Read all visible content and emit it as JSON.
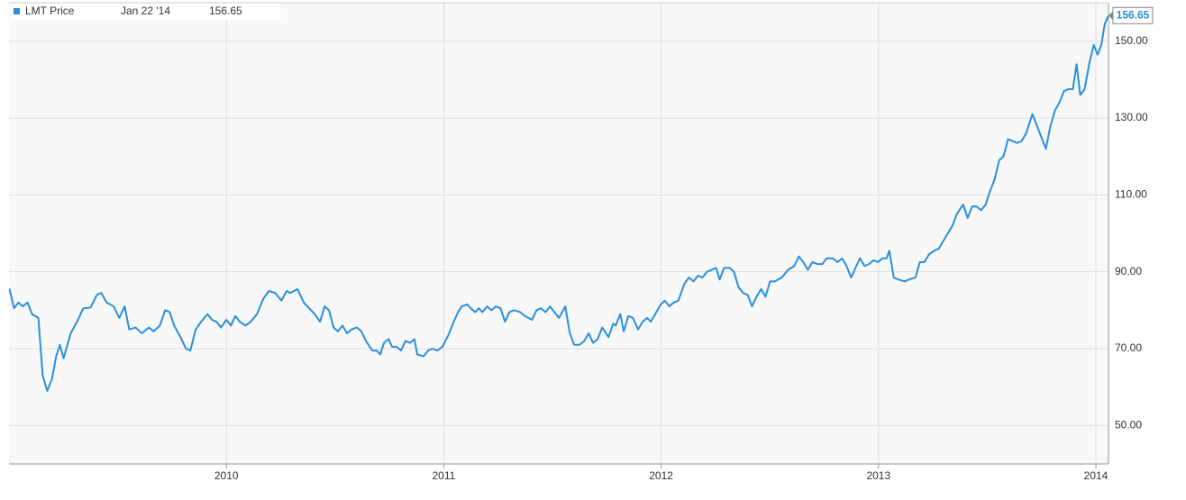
{
  "chart_data": {
    "type": "line",
    "legend_date": "Jan 22 '14",
    "x": [
      2009.002,
      2009.023,
      2009.043,
      2009.064,
      2009.085,
      2009.106,
      2009.135,
      2009.155,
      2009.176,
      2009.197,
      2009.217,
      2009.234,
      2009.251,
      2009.284,
      2009.313,
      2009.342,
      2009.375,
      2009.404,
      2009.424,
      2009.449,
      2009.482,
      2009.507,
      2009.532,
      2009.553,
      2009.582,
      2009.611,
      2009.644,
      2009.665,
      2009.694,
      2009.718,
      2009.739,
      2009.76,
      2009.789,
      2009.814,
      2009.834,
      2009.859,
      2009.884,
      2009.913,
      2009.934,
      2009.954,
      2009.975,
      2010.0,
      2010.021,
      2010.041,
      2010.062,
      2010.087,
      2010.112,
      2010.141,
      2010.17,
      2010.195,
      2010.224,
      2010.253,
      2010.277,
      2010.294,
      2010.327,
      2010.356,
      2010.381,
      2010.406,
      2010.431,
      2010.452,
      2010.472,
      2010.493,
      2010.513,
      2010.534,
      2010.555,
      2010.576,
      2010.6,
      2010.621,
      2010.642,
      2010.671,
      2010.692,
      2010.708,
      2010.725,
      2010.746,
      2010.762,
      2010.783,
      2010.803,
      2010.824,
      2010.845,
      2010.865,
      2010.878,
      2010.907,
      2010.928,
      2010.948,
      2010.969,
      2010.994,
      2011.021,
      2011.046,
      2011.066,
      2011.083,
      2011.108,
      2011.124,
      2011.145,
      2011.161,
      2011.178,
      2011.199,
      2011.219,
      2011.24,
      2011.261,
      2011.282,
      2011.302,
      2011.323,
      2011.352,
      2011.373,
      2011.406,
      2011.427,
      2011.447,
      2011.468,
      2011.489,
      2011.509,
      2011.53,
      2011.559,
      2011.58,
      2011.6,
      2011.625,
      2011.646,
      2011.667,
      2011.687,
      2011.708,
      2011.729,
      2011.758,
      2011.779,
      2011.791,
      2011.812,
      2011.828,
      2011.849,
      2011.87,
      2011.894,
      2011.915,
      2011.936,
      2011.952,
      2011.973,
      2011.998,
      2012.017,
      2012.037,
      2012.058,
      2012.079,
      2012.108,
      2012.128,
      2012.149,
      2012.17,
      2012.19,
      2012.211,
      2012.232,
      2012.253,
      2012.269,
      2012.29,
      2012.315,
      2012.335,
      2012.356,
      2012.377,
      2012.398,
      2012.418,
      2012.439,
      2012.46,
      2012.48,
      2012.501,
      2012.522,
      2012.555,
      2012.584,
      2012.613,
      2012.633,
      2012.654,
      2012.675,
      2012.696,
      2012.72,
      2012.741,
      2012.762,
      2012.791,
      2012.811,
      2012.832,
      2012.853,
      2012.874,
      2012.894,
      2012.915,
      2012.936,
      2012.956,
      2012.977,
      2012.998,
      2013.017,
      2013.037,
      2013.05,
      2013.07,
      2013.091,
      2013.12,
      2013.141,
      2013.17,
      2013.19,
      2013.211,
      2013.232,
      2013.257,
      2013.277,
      2013.298,
      2013.319,
      2013.34,
      2013.36,
      2013.389,
      2013.41,
      2013.431,
      2013.451,
      2013.472,
      2013.493,
      2013.513,
      2013.534,
      2013.555,
      2013.575,
      2013.596,
      2013.617,
      2013.638,
      2013.658,
      2013.679,
      2013.708,
      2013.729,
      2013.749,
      2013.77,
      2013.791,
      2013.812,
      2013.832,
      2013.853,
      2013.874,
      2013.894,
      2013.911,
      2013.928,
      2013.948,
      2013.969,
      2013.99,
      2014.008,
      2014.025,
      2014.041,
      2014.058
    ],
    "series": [
      {
        "name": "LMT Price",
        "color": "#2b8fdc",
        "values": [
          85.6,
          80.5,
          82,
          81,
          82,
          79,
          78,
          63,
          59,
          62,
          68,
          71,
          67.5,
          74,
          77,
          80.5,
          80.7,
          84,
          84.5,
          82,
          81,
          78,
          81,
          75,
          75.5,
          74,
          75.5,
          74.5,
          76,
          80,
          79.5,
          76,
          73,
          70,
          69.5,
          75,
          77,
          79,
          77.5,
          77,
          75.5,
          77.5,
          76,
          78.5,
          77,
          76,
          77,
          79,
          83,
          85,
          84.5,
          82.5,
          85,
          84.5,
          85.5,
          82,
          80.5,
          79,
          77,
          81,
          80,
          75.5,
          74.5,
          76,
          74,
          75,
          75.5,
          74.5,
          72,
          69.5,
          69.5,
          68.5,
          71.5,
          72.5,
          70.5,
          70.5,
          69.5,
          72,
          71.5,
          72.5,
          68.5,
          68,
          69.5,
          70,
          69.5,
          70.5,
          73.5,
          77,
          79.5,
          81,
          81.5,
          80.5,
          79.5,
          80.5,
          79.5,
          81,
          80,
          81,
          80.5,
          77,
          79.5,
          80,
          79.5,
          78.5,
          77.5,
          80,
          80.5,
          79.5,
          81,
          79.5,
          78,
          81,
          74,
          71,
          71,
          72,
          74,
          71.5,
          72.5,
          75.5,
          73,
          76.5,
          76,
          79,
          74.5,
          78.5,
          78,
          75,
          77,
          78,
          77,
          79,
          81.5,
          82.5,
          81,
          82,
          82.5,
          87,
          88.5,
          87.5,
          89,
          88.5,
          90,
          90.5,
          91,
          88,
          91,
          91,
          90,
          86,
          84.5,
          84,
          81,
          83.5,
          85.5,
          83.5,
          87.5,
          87.5,
          88.5,
          90.5,
          91.5,
          94,
          92.5,
          90.5,
          92.5,
          92,
          92,
          93.5,
          93.5,
          92.5,
          93.5,
          91.5,
          88.5,
          91,
          93.5,
          91.5,
          92,
          93,
          92.5,
          93.5,
          93.5,
          95.5,
          88.5,
          88,
          87.5,
          88,
          88.5,
          92.5,
          92.5,
          94.5,
          95.5,
          96,
          98,
          100,
          102,
          105,
          107.5,
          104,
          107,
          107,
          106,
          107.5,
          111,
          114,
          119,
          120,
          124.5,
          124,
          123.5,
          124,
          126,
          131,
          128,
          125,
          122,
          128,
          132,
          134,
          137,
          137.5,
          137.5,
          144,
          136,
          137.5,
          144,
          149,
          146.5,
          149,
          154.5,
          156.65
        ]
      }
    ],
    "xlim": [
      2009,
      2014.058
    ],
    "xticks": [
      2010,
      2011,
      2012,
      2013,
      2014
    ],
    "ylim": [
      40,
      160
    ],
    "yticks": [
      {
        "value": 50,
        "label": "50.00"
      },
      {
        "value": 70,
        "label": "70.00"
      },
      {
        "value": 90,
        "label": "90.00"
      },
      {
        "value": 110,
        "label": "110.00"
      },
      {
        "value": 130,
        "label": "130.00"
      },
      {
        "value": 150,
        "label": "150.00"
      }
    ],
    "grid": true
  }
}
